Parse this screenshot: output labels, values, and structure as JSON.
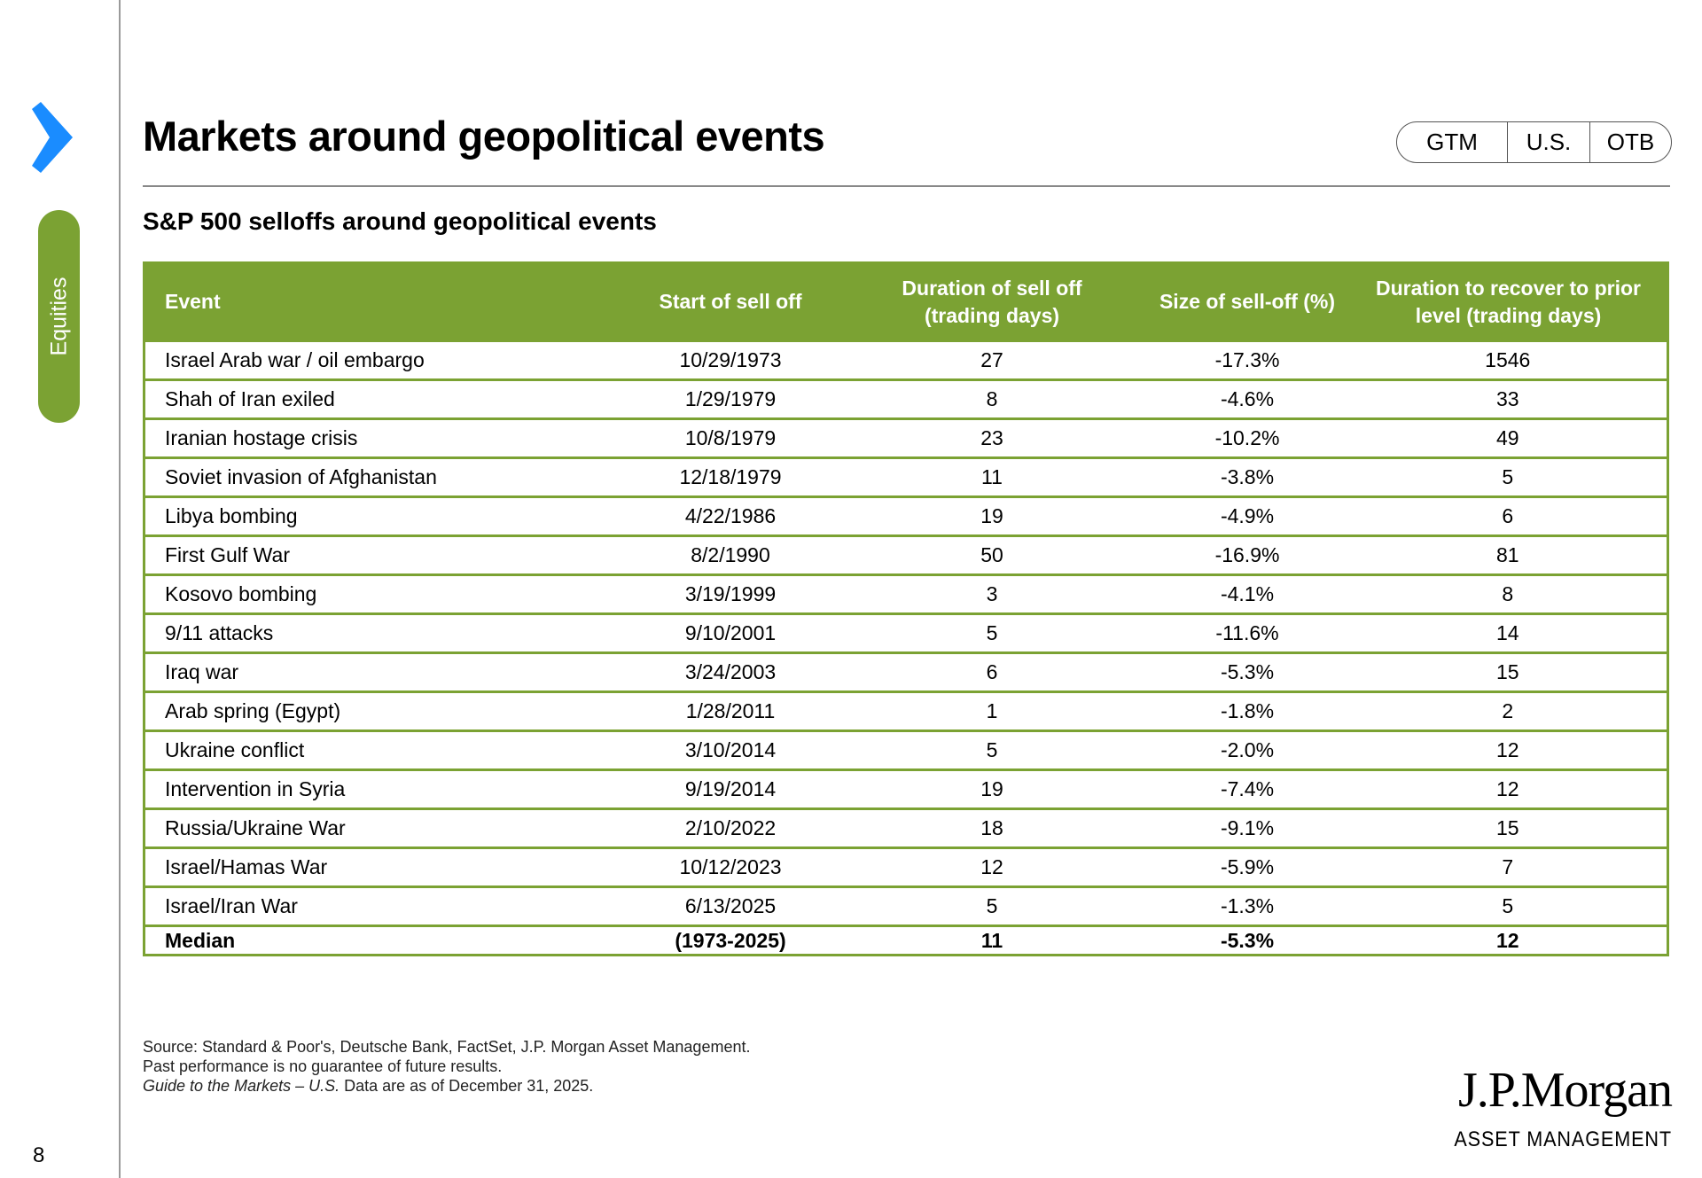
{
  "sidebar": {
    "section_label": "Equities",
    "page_number": "8",
    "accent_color": "#1a8cff",
    "section_color": "#7ba233"
  },
  "header": {
    "title": "Markets around geopolitical events",
    "tags": [
      "GTM",
      "U.S.",
      "OTB"
    ]
  },
  "subtitle": "S&P 500 selloffs around geopolitical events",
  "table": {
    "columns": [
      "Event",
      "Start of sell off",
      "Duration of sell off (trading days)",
      "Size of sell-off (%)",
      "Duration to recover to prior level (trading days)"
    ],
    "rows": [
      [
        "Israel Arab war / oil embargo",
        "10/29/1973",
        "27",
        "-17.3%",
        "1546"
      ],
      [
        "Shah of Iran exiled",
        "1/29/1979",
        "8",
        "-4.6%",
        "33"
      ],
      [
        "Iranian hostage crisis",
        "10/8/1979",
        "23",
        "-10.2%",
        "49"
      ],
      [
        "Soviet invasion of Afghanistan",
        "12/18/1979",
        "11",
        "-3.8%",
        "5"
      ],
      [
        "Libya bombing",
        "4/22/1986",
        "19",
        "-4.9%",
        "6"
      ],
      [
        "First Gulf War",
        "8/2/1990",
        "50",
        "-16.9%",
        "81"
      ],
      [
        "Kosovo bombing",
        "3/19/1999",
        "3",
        "-4.1%",
        "8"
      ],
      [
        "9/11 attacks",
        "9/10/2001",
        "5",
        "-11.6%",
        "14"
      ],
      [
        "Iraq war",
        "3/24/2003",
        "6",
        "-5.3%",
        "15"
      ],
      [
        "Arab spring (Egypt)",
        "1/28/2011",
        "1",
        "-1.8%",
        "2"
      ],
      [
        "Ukraine conflict",
        "3/10/2014",
        "5",
        "-2.0%",
        "12"
      ],
      [
        "Intervention in Syria",
        "9/19/2014",
        "19",
        "-7.4%",
        "12"
      ],
      [
        "Russia/Ukraine War",
        "2/10/2022",
        "18",
        "-9.1%",
        "15"
      ],
      [
        "Israel/Hamas War",
        "10/12/2023",
        "12",
        "-5.9%",
        "7"
      ],
      [
        "Israel/Iran War",
        "6/13/2025",
        "5",
        "-1.3%",
        "5"
      ]
    ],
    "median": [
      "Median",
      "(1973-2025)",
      "11",
      "-5.3%",
      "12"
    ]
  },
  "footer": {
    "source": "Source: Standard & Poor's, Deutsche Bank, FactSet, J.P. Morgan Asset Management.",
    "disclaimer": "Past performance is no guarantee of future results.",
    "guide_italic": "Guide to the Markets – U.S.",
    "data_as_of": " Data are as of December 31, 2025."
  },
  "logo": {
    "name": "J.P.Morgan",
    "subtitle": "ASSET MANAGEMENT"
  }
}
